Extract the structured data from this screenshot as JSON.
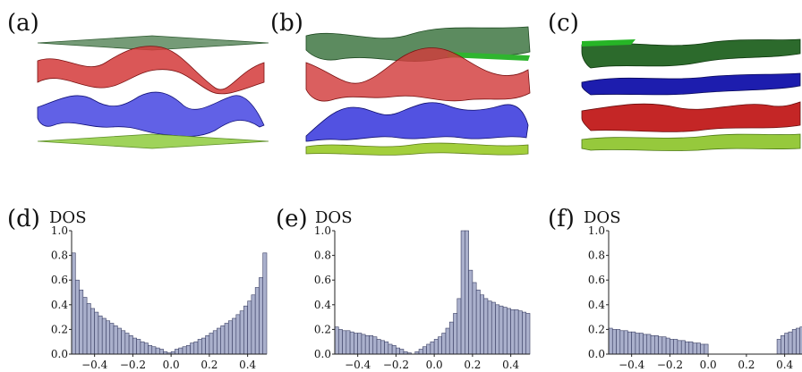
{
  "panel_labels": {
    "a": "(a)",
    "b": "(b)",
    "c": "(c)",
    "d": "(d)",
    "e": "(e)",
    "f": "(f)"
  },
  "band_colors": {
    "green": "#4f7d52",
    "red": "#c42a2a",
    "blue": "#2222cc",
    "lime": "#8dcc3a",
    "darkgreen": "#1e5e1e"
  },
  "chart_data": [
    {
      "type": "bar",
      "ylabel": "DOS",
      "xlim": [
        -0.52,
        0.5
      ],
      "ylim": [
        0,
        1.0
      ],
      "xticks": [
        "-0.4",
        "-0.2",
        "0.0",
        "0.2",
        "0.4"
      ],
      "yticks": [
        "0.0",
        "0.2",
        "0.4",
        "0.6",
        "0.8",
        "1.0"
      ],
      "x": [
        -0.51,
        -0.49,
        -0.47,
        -0.45,
        -0.43,
        -0.41,
        -0.39,
        -0.37,
        -0.35,
        -0.33,
        -0.31,
        -0.29,
        -0.27,
        -0.25,
        -0.23,
        -0.21,
        -0.19,
        -0.17,
        -0.15,
        -0.13,
        -0.11,
        -0.09,
        -0.07,
        -0.05,
        -0.03,
        -0.01,
        0.01,
        0.03,
        0.05,
        0.07,
        0.09,
        0.11,
        0.13,
        0.15,
        0.17,
        0.19,
        0.21,
        0.23,
        0.25,
        0.27,
        0.29,
        0.31,
        0.33,
        0.35,
        0.37,
        0.39,
        0.41,
        0.43,
        0.45,
        0.47,
        0.49
      ],
      "values": [
        0.82,
        0.6,
        0.52,
        0.46,
        0.41,
        0.37,
        0.34,
        0.31,
        0.29,
        0.27,
        0.25,
        0.23,
        0.21,
        0.19,
        0.17,
        0.15,
        0.13,
        0.12,
        0.1,
        0.09,
        0.07,
        0.06,
        0.05,
        0.04,
        0.02,
        0.01,
        0.02,
        0.04,
        0.05,
        0.06,
        0.07,
        0.09,
        0.1,
        0.12,
        0.13,
        0.15,
        0.17,
        0.19,
        0.21,
        0.23,
        0.25,
        0.27,
        0.29,
        0.32,
        0.35,
        0.39,
        0.43,
        0.48,
        0.54,
        0.62,
        0.82
      ]
    },
    {
      "type": "bar",
      "ylabel": "DOS",
      "xlim": [
        -0.52,
        0.5
      ],
      "ylim": [
        0,
        1.0
      ],
      "xticks": [
        "-0.4",
        "-0.2",
        "0.0",
        "0.2",
        "0.4"
      ],
      "yticks": [
        "0.0",
        "0.2",
        "0.4",
        "0.6",
        "0.8",
        "1.0"
      ],
      "x": [
        -0.51,
        -0.49,
        -0.47,
        -0.45,
        -0.43,
        -0.41,
        -0.39,
        -0.37,
        -0.35,
        -0.33,
        -0.31,
        -0.29,
        -0.27,
        -0.25,
        -0.23,
        -0.21,
        -0.19,
        -0.17,
        -0.15,
        -0.13,
        -0.11,
        -0.09,
        -0.07,
        -0.05,
        -0.03,
        -0.01,
        0.01,
        0.03,
        0.05,
        0.07,
        0.09,
        0.11,
        0.13,
        0.15,
        0.17,
        0.19,
        0.21,
        0.23,
        0.25,
        0.27,
        0.29,
        0.31,
        0.33,
        0.35,
        0.37,
        0.39,
        0.41,
        0.43,
        0.45,
        0.47,
        0.49
      ],
      "values": [
        0.22,
        0.2,
        0.19,
        0.19,
        0.18,
        0.17,
        0.17,
        0.16,
        0.15,
        0.15,
        0.14,
        0.12,
        0.11,
        0.1,
        0.08,
        0.07,
        0.05,
        0.04,
        0.02,
        0.01,
        0.0,
        0.02,
        0.04,
        0.06,
        0.08,
        0.1,
        0.12,
        0.14,
        0.17,
        0.21,
        0.26,
        0.33,
        0.45,
        1.0,
        1.0,
        0.68,
        0.58,
        0.52,
        0.48,
        0.45,
        0.43,
        0.42,
        0.4,
        0.39,
        0.38,
        0.37,
        0.36,
        0.36,
        0.35,
        0.34,
        0.33
      ]
    },
    {
      "type": "bar",
      "ylabel": "DOS",
      "xlim": [
        -0.52,
        0.5
      ],
      "ylim": [
        0,
        1.0
      ],
      "xticks": [
        "-0.4",
        "-0.2",
        "0.0",
        "0.2",
        "0.4"
      ],
      "yticks": [
        "0.0",
        "0.2",
        "0.4",
        "0.6",
        "0.8",
        "1.0"
      ],
      "x": [
        -0.51,
        -0.49,
        -0.47,
        -0.45,
        -0.43,
        -0.41,
        -0.39,
        -0.37,
        -0.35,
        -0.33,
        -0.31,
        -0.29,
        -0.27,
        -0.25,
        -0.23,
        -0.21,
        -0.19,
        -0.17,
        -0.15,
        -0.13,
        -0.11,
        -0.09,
        -0.07,
        -0.05,
        -0.03,
        -0.01,
        0.01,
        0.03,
        0.05,
        0.07,
        0.09,
        0.11,
        0.13,
        0.15,
        0.17,
        0.19,
        0.21,
        0.23,
        0.25,
        0.27,
        0.29,
        0.31,
        0.33,
        0.35,
        0.37,
        0.39,
        0.41,
        0.43,
        0.45,
        0.47,
        0.49
      ],
      "values": [
        0.21,
        0.2,
        0.2,
        0.19,
        0.19,
        0.18,
        0.18,
        0.17,
        0.17,
        0.16,
        0.16,
        0.15,
        0.15,
        0.14,
        0.14,
        0.13,
        0.12,
        0.12,
        0.11,
        0.11,
        0.1,
        0.1,
        0.09,
        0.09,
        0.08,
        0.08,
        0,
        0,
        0,
        0,
        0,
        0,
        0,
        0,
        0,
        0,
        0,
        0,
        0,
        0,
        0,
        0,
        0,
        0,
        0.12,
        0.15,
        0.17,
        0.18,
        0.2,
        0.21,
        0.22
      ]
    }
  ]
}
